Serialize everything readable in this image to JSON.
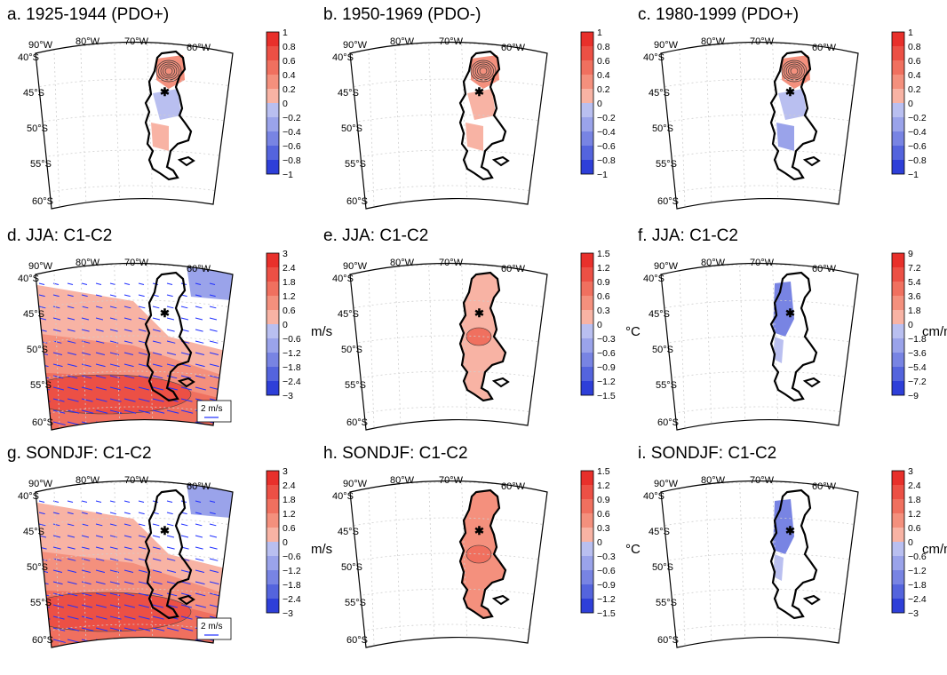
{
  "colorbars": {
    "r1": [
      "1",
      "0.8",
      "0.6",
      "0.4",
      "0.2",
      "0",
      "−0.2",
      "−0.4",
      "−0.6",
      "−0.8",
      "−1"
    ],
    "wind": [
      "3",
      "2.4",
      "1.8",
      "1.2",
      "0.6",
      "0",
      "−0.6",
      "−1.2",
      "−1.8",
      "−2.4",
      "−3"
    ],
    "temp": [
      "1.5",
      "1.2",
      "0.9",
      "0.6",
      "0.3",
      "0",
      "−0.3",
      "−0.6",
      "−0.9",
      "−1.2",
      "−1.5"
    ],
    "precip_jja": [
      "9",
      "7.2",
      "5.4",
      "3.6",
      "1.8",
      "0",
      "−1.8",
      "−3.6",
      "−5.4",
      "−7.2",
      "−9"
    ],
    "precip_sondjf": [
      "3",
      "2.4",
      "1.8",
      "1.2",
      "0.6",
      "0",
      "−0.6",
      "−1.2",
      "−1.8",
      "−2.4",
      "−3"
    ]
  },
  "colors": {
    "red": [
      "#e8302b",
      "#ec5045",
      "#f0705f",
      "#f4907d",
      "#f8b3a4",
      "#ffffff"
    ],
    "blue": [
      "#ffffff",
      "#b9bff0",
      "#9aa3ea",
      "#7884e3",
      "#5464dd",
      "#2e3fd8"
    ],
    "vector": "#2030ff",
    "coast": "#000000"
  },
  "map_labels": {
    "lon": [
      "90°W",
      "80°W",
      "70°W",
      "60°W"
    ],
    "lat": [
      "40°S",
      "45°S",
      "50°S",
      "55°S",
      "60°S"
    ]
  },
  "panels": [
    {
      "title": "a. 1925-1944 (PDO+)",
      "cbar": "r1",
      "unit": ""
    },
    {
      "title": "b. 1950-1969 (PDO-)",
      "cbar": "r1",
      "unit": ""
    },
    {
      "title": "c. 1980-1999 (PDO+)",
      "cbar": "r1",
      "unit": ""
    },
    {
      "title": "d. JJA: C1-C2",
      "cbar": "wind",
      "unit": "m/s",
      "ref": "2 m/s"
    },
    {
      "title": "e. JJA: C1-C2",
      "cbar": "temp",
      "unit": "°C"
    },
    {
      "title": "f. JJA: C1-C2",
      "cbar": "precip_jja",
      "unit": "cm/month"
    },
    {
      "title": "g. SONDJF: C1-C2",
      "cbar": "wind",
      "unit": "m/s",
      "ref": "2 m/s"
    },
    {
      "title": "h. SONDJF: C1-C2",
      "cbar": "temp",
      "unit": "°C"
    },
    {
      "title": "i. SONDJF: C1-C2",
      "cbar": "precip_sondjf",
      "unit": "cm/month"
    }
  ]
}
